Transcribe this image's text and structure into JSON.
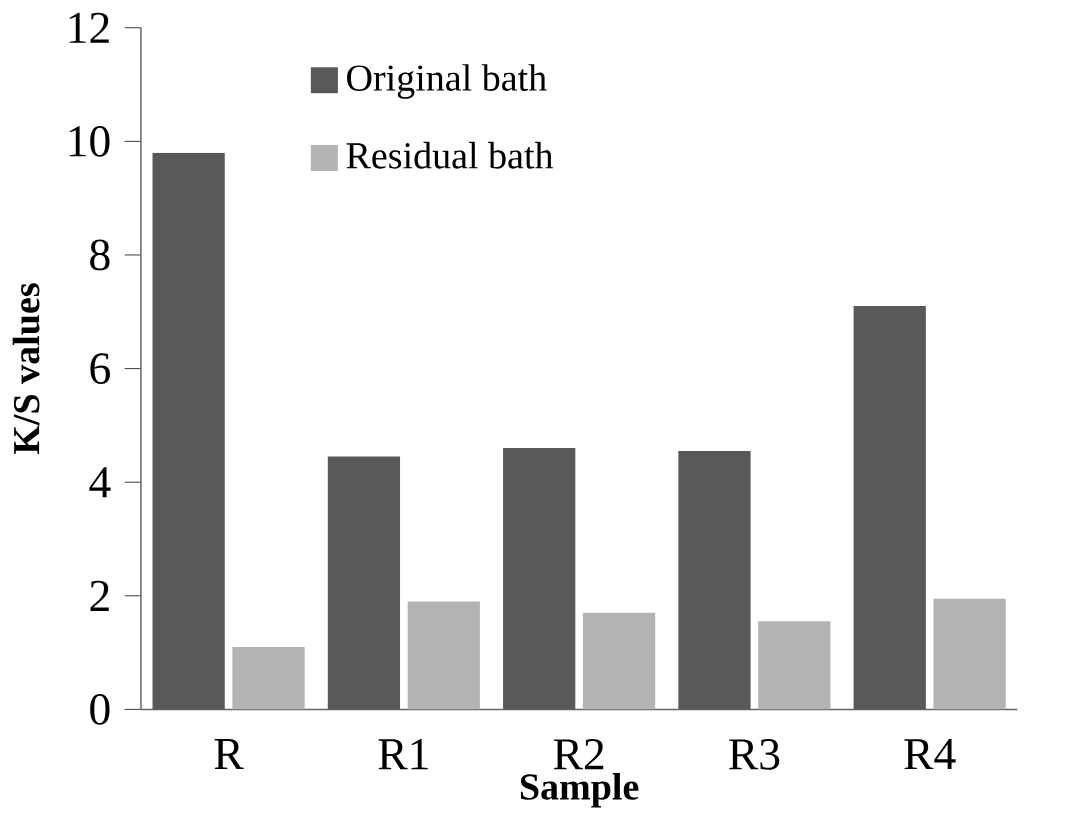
{
  "chart_data": {
    "type": "bar",
    "xlabel": "Sample",
    "ylabel": "K/S values",
    "categories": [
      "R",
      "R1",
      "R2",
      "R3",
      "R4"
    ],
    "series": [
      {
        "name": "Original bath",
        "color": "#595959",
        "values": [
          9.8,
          4.45,
          4.6,
          4.55,
          7.1
        ]
      },
      {
        "name": "Residual bath",
        "color": "#b3b3b3",
        "values": [
          1.1,
          1.9,
          1.7,
          1.55,
          1.95
        ]
      }
    ],
    "ylim": [
      0,
      12
    ],
    "yticks": [
      0,
      2,
      4,
      6,
      8,
      10,
      12
    ],
    "grid": false,
    "legend": "top left"
  }
}
